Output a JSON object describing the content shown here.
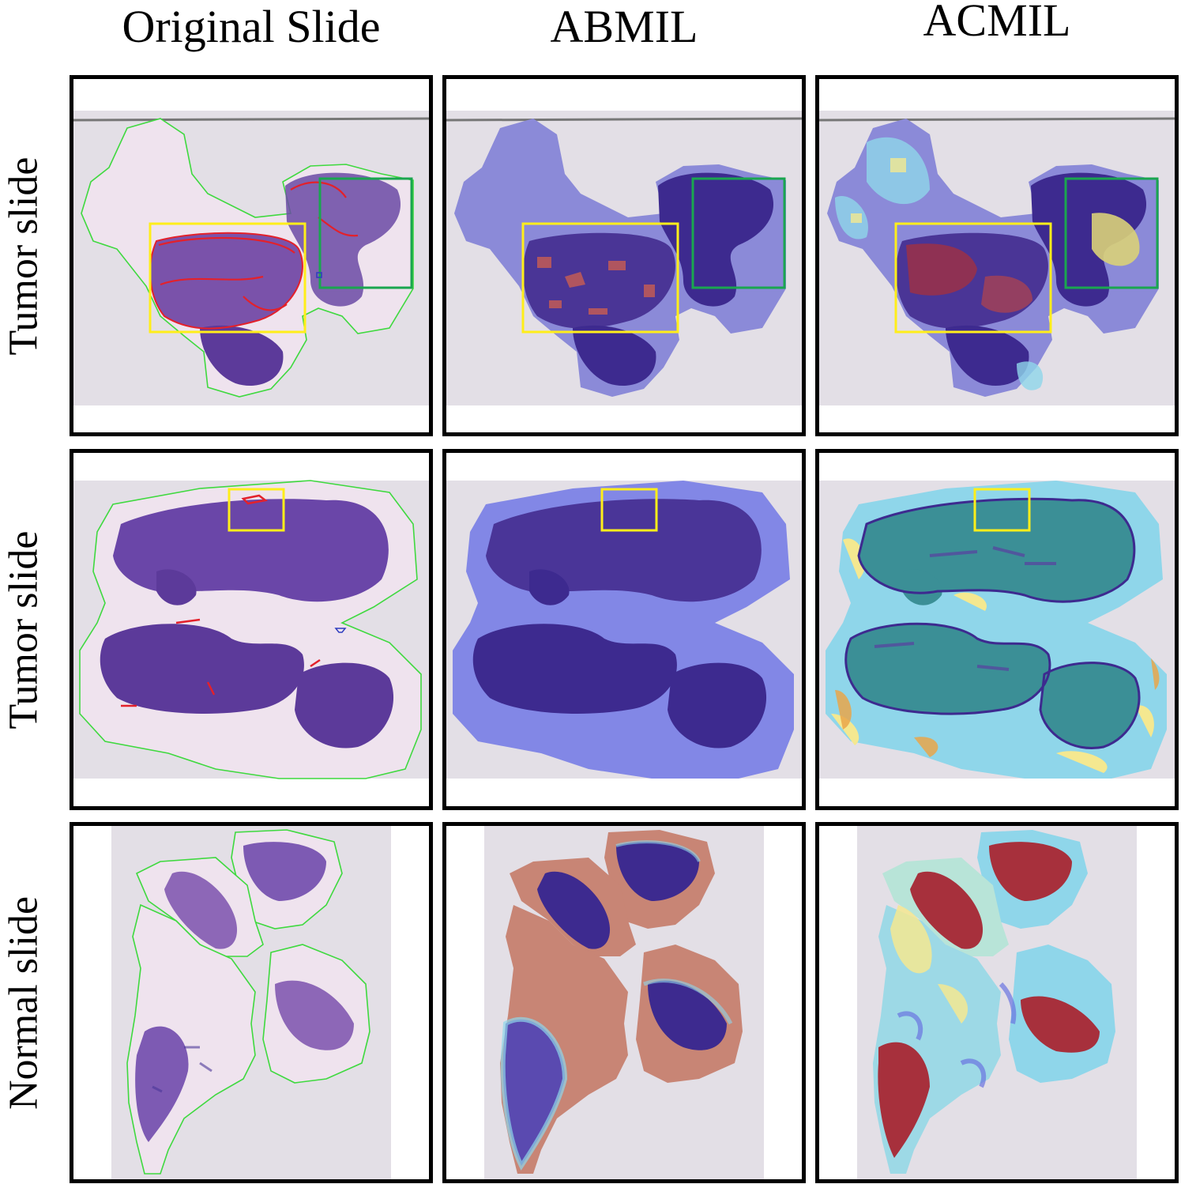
{
  "columns": [
    "Original Slide",
    "ABMIL",
    "ACMIL"
  ],
  "rows": [
    "Tumor slide",
    "Tumor slide",
    "Normal slide"
  ],
  "colors": {
    "slide_bg": "#e3dfe6",
    "tissue_pink": "#efe3ee",
    "tissue_dark": "#5c3a9a",
    "tissue_mid": "#8d67b7",
    "annotation_green": "#3fd93f",
    "tumor_red": "#e3212b",
    "box_yellow": "#ffee1a",
    "box_green": "#1aa64f",
    "attn_blue": "#7f86ec",
    "attn_deep": "#3d2a8f",
    "attn_salmon": "#c88575",
    "attn_cyan": "#8fd6ea",
    "attn_teal": "#3b8f96",
    "attn_red": "#a7303c",
    "attn_yellow": "#f4e890"
  }
}
